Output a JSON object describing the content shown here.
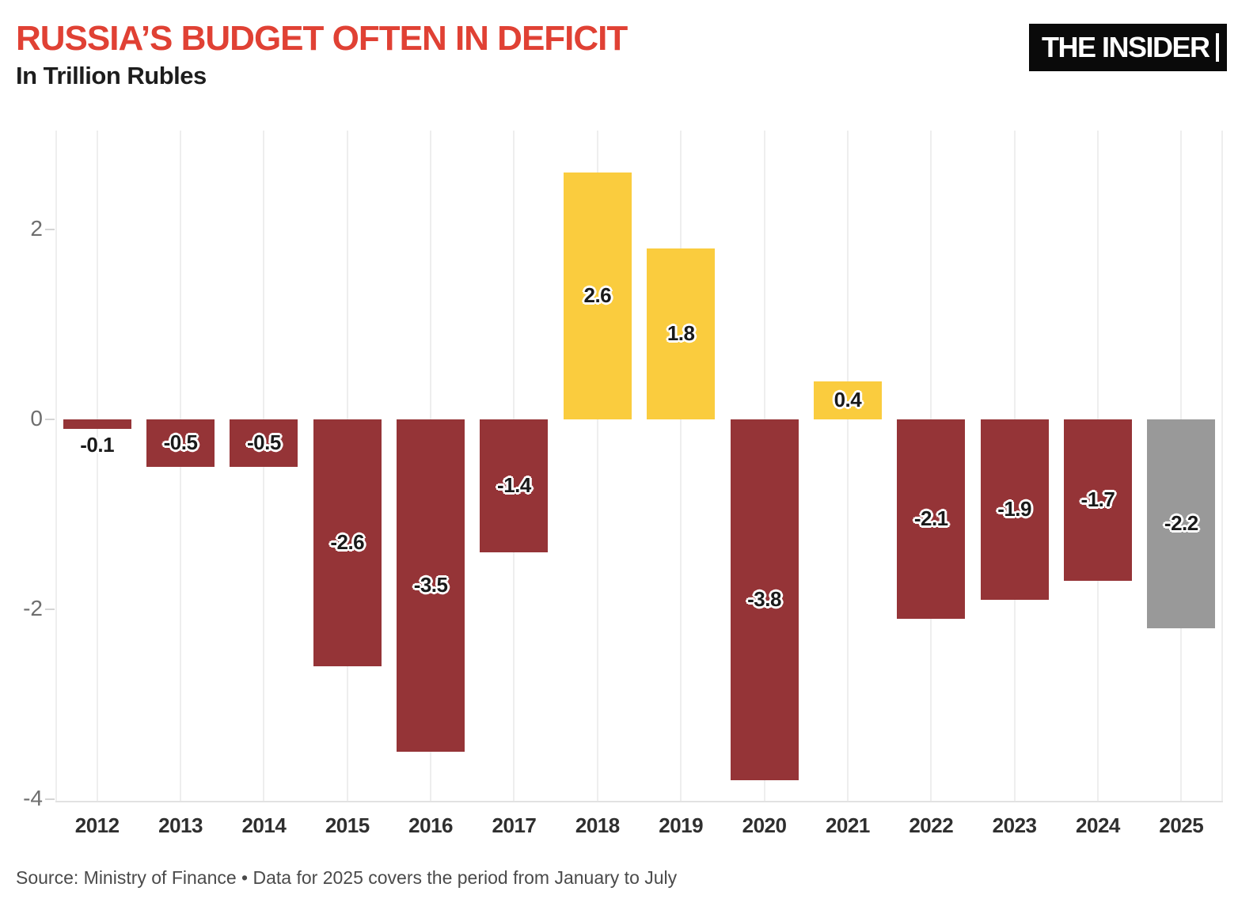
{
  "header": {
    "title": "RUSSIA’S BUDGET OFTEN IN DEFICIT",
    "subtitle": "In Trillion Rubles",
    "logo_text": "THE INSIDER"
  },
  "footer": {
    "source": "Source: Ministry of Finance • Data for 2025 covers the period from January to July"
  },
  "colors": {
    "title_red": "#E04134",
    "deficit_bar": "#953437",
    "surplus_bar": "#FACC3E",
    "partial_year_bar": "#999999",
    "gridline": "#eeeeee",
    "axis_tick_text": "#6e6e6e",
    "year_text": "#2f2f2f",
    "value_text": "#1a1a1a"
  },
  "chart_data": {
    "type": "bar",
    "title": "RUSSIA’S BUDGET OFTEN IN DEFICIT",
    "subtitle": "In Trillion Rubles",
    "unit": "trillion rubles",
    "categories": [
      "2012",
      "2013",
      "2014",
      "2015",
      "2016",
      "2017",
      "2018",
      "2019",
      "2020",
      "2021",
      "2022",
      "2023",
      "2024",
      "2025"
    ],
    "values": [
      -0.1,
      -0.5,
      -0.5,
      -2.6,
      -3.5,
      -1.4,
      2.6,
      1.8,
      -3.8,
      0.4,
      -2.1,
      -1.9,
      -1.7,
      -2.2
    ],
    "value_labels": [
      "-0.1",
      "-0.5",
      "-0.5",
      "-2.6",
      "-3.5",
      "-1.4",
      "2.6",
      "1.8",
      "-3.8",
      "0.4",
      "-2.1",
      "-1.9",
      "-1.7",
      "-2.2"
    ],
    "color_keys": [
      "deficit_bar",
      "deficit_bar",
      "deficit_bar",
      "deficit_bar",
      "deficit_bar",
      "deficit_bar",
      "surplus_bar",
      "surplus_bar",
      "deficit_bar",
      "surplus_bar",
      "deficit_bar",
      "deficit_bar",
      "deficit_bar",
      "partial_year_bar"
    ],
    "yticks": [
      2,
      0,
      -2,
      -4
    ],
    "ytick_labels": [
      "2",
      "0",
      "-2",
      "-4"
    ],
    "ylim": [
      -4.05,
      3.05
    ],
    "grid": "vertical-only",
    "legend": "none",
    "xlabel": "",
    "ylabel": ""
  }
}
